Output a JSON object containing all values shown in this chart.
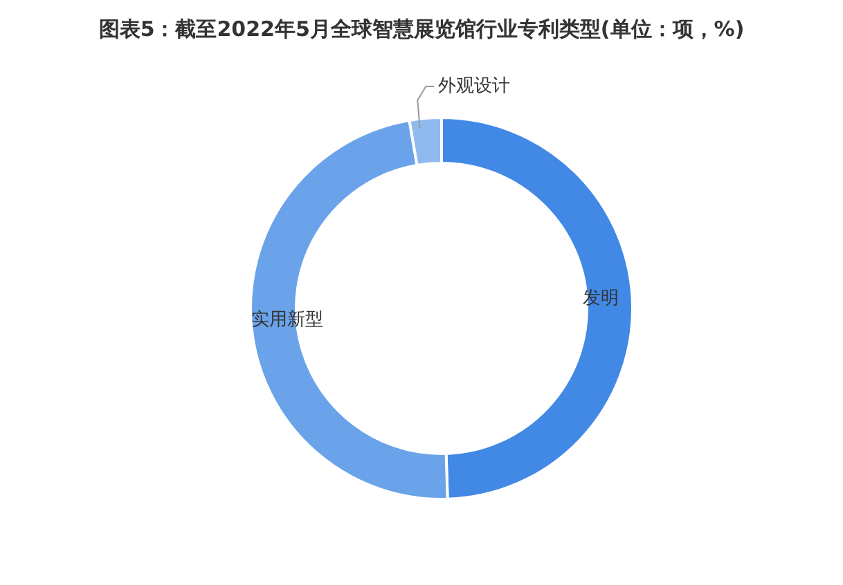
{
  "chart_data": {
    "type": "donut",
    "title": "图表5：截至2022年5月全球智慧展览馆行业专利类型(单位：项，%)",
    "categories": [
      "发明",
      "实用新型",
      "外观设计"
    ],
    "values": [
      49.5,
      47.8,
      2.7
    ],
    "colors": [
      "#4289e6",
      "#6aa3ea",
      "#8fbaf0"
    ],
    "legend": false
  }
}
